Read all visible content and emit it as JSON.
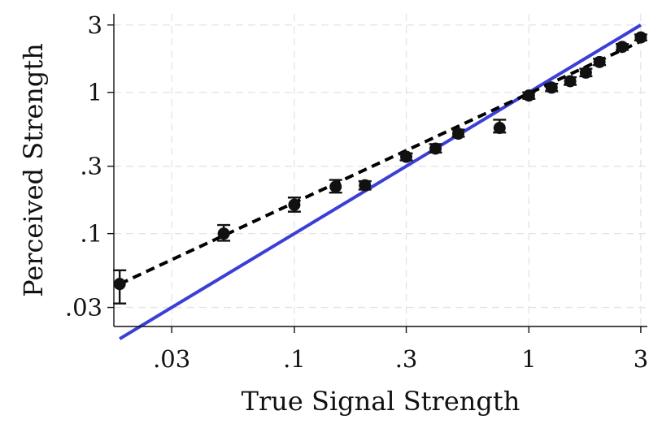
{
  "chart_data": {
    "type": "scatter",
    "title": "",
    "xlabel": "True Signal Strength",
    "ylabel": "Perceived Strength",
    "x_scale": "log",
    "y_scale": "log",
    "xlim": [
      0.017,
      3.2
    ],
    "ylim": [
      0.022,
      3.6
    ],
    "x_ticks": [
      {
        "value": 0.03,
        "label": ".03"
      },
      {
        "value": 0.1,
        "label": ".1"
      },
      {
        "value": 0.3,
        "label": ".3"
      },
      {
        "value": 1,
        "label": "1"
      },
      {
        "value": 3,
        "label": "3"
      }
    ],
    "y_ticks": [
      {
        "value": 0.03,
        "label": ".03"
      },
      {
        "value": 0.1,
        "label": ".1"
      },
      {
        "value": 0.3,
        "label": ".3"
      },
      {
        "value": 1,
        "label": "1"
      },
      {
        "value": 3,
        "label": "3"
      }
    ],
    "grid": true,
    "legend": "none",
    "series": [
      {
        "type": "scatter_with_error_bars",
        "color": "#111111",
        "points": [
          {
            "x": 0.018,
            "y": 0.044,
            "err_low": 0.032,
            "err_high": 0.055
          },
          {
            "x": 0.05,
            "y": 0.1,
            "err_low": 0.089,
            "err_high": 0.115
          },
          {
            "x": 0.1,
            "y": 0.16,
            "err_low": 0.143,
            "err_high": 0.18
          },
          {
            "x": 0.15,
            "y": 0.215,
            "err_low": 0.195,
            "err_high": 0.24
          },
          {
            "x": 0.2,
            "y": 0.22,
            "err_low": 0.205,
            "err_high": 0.235
          },
          {
            "x": 0.3,
            "y": 0.35,
            "err_low": 0.33,
            "err_high": 0.37
          },
          {
            "x": 0.4,
            "y": 0.4,
            "err_low": 0.375,
            "err_high": 0.43
          },
          {
            "x": 0.5,
            "y": 0.51,
            "err_low": 0.485,
            "err_high": 0.545
          },
          {
            "x": 0.75,
            "y": 0.56,
            "err_low": 0.52,
            "err_high": 0.64
          },
          {
            "x": 1,
            "y": 0.95,
            "err_low": 0.9,
            "err_high": 1.0
          },
          {
            "x": 1.25,
            "y": 1.08,
            "err_low": 1.02,
            "err_high": 1.15
          },
          {
            "x": 1.5,
            "y": 1.2,
            "err_low": 1.13,
            "err_high": 1.28
          },
          {
            "x": 1.75,
            "y": 1.38,
            "err_low": 1.3,
            "err_high": 1.47
          },
          {
            "x": 2,
            "y": 1.64,
            "err_low": 1.56,
            "err_high": 1.73
          },
          {
            "x": 2.5,
            "y": 2.1,
            "err_low": 2.0,
            "err_high": 2.2
          },
          {
            "x": 3,
            "y": 2.45,
            "err_low": 2.33,
            "err_high": 2.57
          }
        ]
      },
      {
        "type": "fit_line",
        "style": "dashed",
        "color": "#000000",
        "x": [
          0.018,
          3
        ],
        "y": [
          0.044,
          2.3
        ]
      },
      {
        "type": "reference_line",
        "style": "solid",
        "color": "#3a3fd6",
        "x": [
          0.018,
          3
        ],
        "y": [
          0.018,
          3
        ]
      }
    ]
  }
}
